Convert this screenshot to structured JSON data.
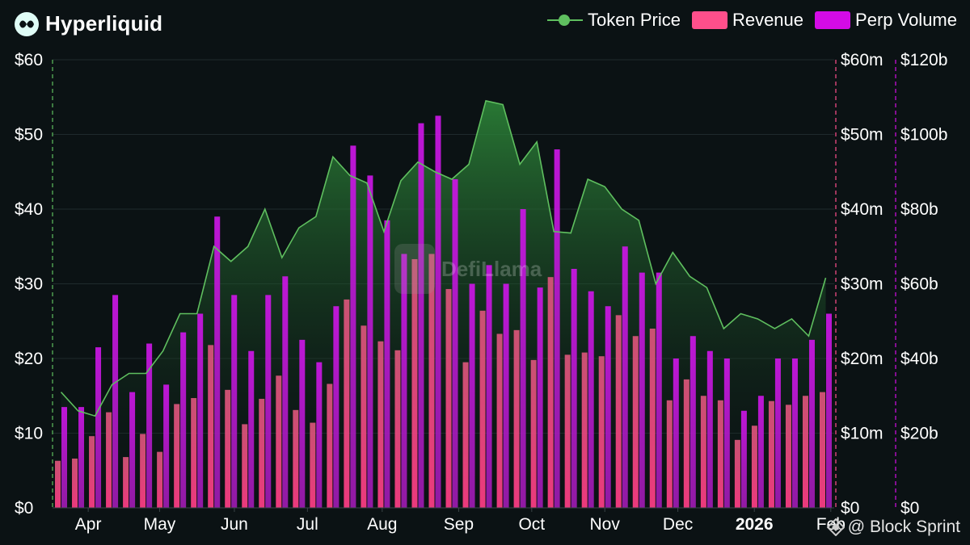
{
  "header": {
    "title": "Hyperliquid",
    "logo_icon": "hyperliquid-logo-icon"
  },
  "legend": [
    {
      "label": "Token Price",
      "color": "#5fbf5f",
      "kind": "line"
    },
    {
      "label": "Revenue",
      "color": "#ff4f8b",
      "kind": "box"
    },
    {
      "label": "Perp Volume",
      "color": "#d40be6",
      "kind": "box"
    }
  ],
  "watermark": {
    "center": "DefiLlama",
    "credit": "@ Block Sprint",
    "credit_icon": "defillama-diamond-icon"
  },
  "chart_data": {
    "type": "bar",
    "title": "Hyperliquid",
    "x_labels": [
      {
        "label": "Apr",
        "week": 2.1
      },
      {
        "label": "May",
        "week": 6.3
      },
      {
        "label": "Jun",
        "week": 10.7
      },
      {
        "label": "Jul",
        "week": 15.0
      },
      {
        "label": "Aug",
        "week": 19.4
      },
      {
        "label": "Sep",
        "week": 23.9
      },
      {
        "label": "Oct",
        "week": 28.2
      },
      {
        "label": "Nov",
        "week": 32.5
      },
      {
        "label": "Dec",
        "week": 36.8
      },
      {
        "label": "2026",
        "week": 41.3,
        "bold": true
      },
      {
        "label": "Feb",
        "week": 45.8
      }
    ],
    "axes": {
      "price": {
        "ticks": [
          "$0",
          "$10",
          "$20",
          "$30",
          "$40",
          "$50",
          "$60"
        ],
        "range": [
          0,
          60
        ]
      },
      "revenue": {
        "ticks": [
          "$0",
          "$10m",
          "$20m",
          "$30m",
          "$40m",
          "$50m",
          "$60m"
        ],
        "range": [
          0,
          60
        ]
      },
      "volume": {
        "ticks": [
          "$0",
          "$20b",
          "$40b",
          "$60b",
          "$80b",
          "$100b",
          "$120b"
        ],
        "range": [
          0,
          120
        ]
      }
    },
    "series": [
      {
        "name": "Token Price",
        "axis": "price",
        "kind": "line+area",
        "unit": "$",
        "values": [
          15.5,
          13,
          12.3,
          16.5,
          18,
          18,
          21,
          26,
          26,
          35,
          33,
          35,
          40,
          33.5,
          37.5,
          39,
          47,
          44.5,
          43.5,
          37,
          43.8,
          46.3,
          45,
          44,
          46,
          54.5,
          54,
          46,
          49,
          37,
          36.8,
          44,
          43,
          40,
          38.5,
          30,
          34.2,
          31,
          29.5,
          24,
          26,
          25.3,
          24,
          25.3,
          23,
          30.8
        ]
      },
      {
        "name": "Revenue",
        "axis": "revenue",
        "kind": "bar",
        "unit": "$m",
        "values": [
          6.3,
          6.6,
          9.6,
          12.8,
          6.8,
          9.9,
          7.5,
          13.9,
          14.7,
          21.8,
          15.8,
          11.2,
          14.6,
          17.7,
          13.1,
          11.4,
          16.6,
          27.9,
          24.4,
          22.3,
          21.1,
          33.3,
          34.0,
          29.3,
          19.5,
          26.4,
          23.3,
          23.8,
          19.8,
          30.9,
          20.5,
          20.8,
          20.3,
          25.8,
          23.0,
          24.0,
          14.4,
          17.2,
          15.0,
          14.4,
          9.1,
          11.0,
          14.3,
          13.8,
          15.0,
          15.5
        ]
      },
      {
        "name": "Perp Volume",
        "axis": "volume",
        "kind": "bar",
        "unit": "$b",
        "values": [
          27,
          27,
          43,
          57,
          31,
          44,
          33,
          47,
          52,
          78,
          57,
          42,
          57,
          62,
          45,
          39,
          54,
          97,
          89,
          77,
          68,
          103,
          105,
          88,
          60,
          65,
          60,
          80,
          59,
          96,
          64,
          58,
          54,
          70,
          63,
          63,
          40,
          46,
          42,
          40,
          26,
          30,
          40,
          40,
          45,
          52
        ]
      }
    ]
  }
}
